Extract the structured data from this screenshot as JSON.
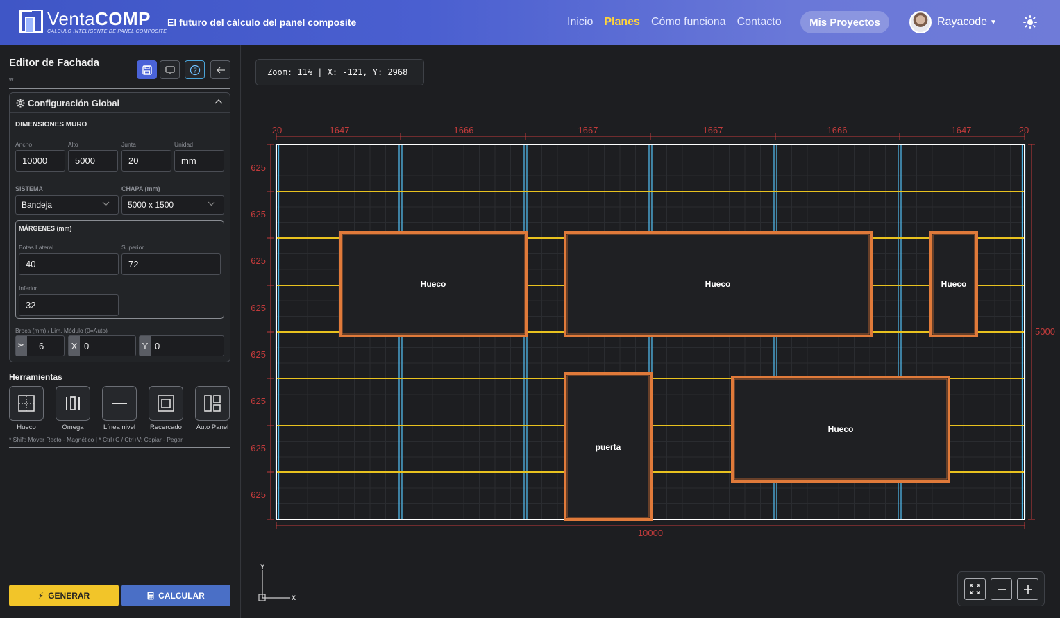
{
  "header": {
    "logo_word1": "Venta",
    "logo_word2": "COMP",
    "logo_subtitle": "CÁLCULO INTELIGENTE DE PANEL COMPOSITE",
    "tagline": "El futuro del cálculo del panel composite",
    "nav": [
      "Inicio",
      "Planes",
      "Cómo funciona",
      "Contacto"
    ],
    "nav_active": "Planes",
    "projects_button": "Mis Proyectos",
    "username": "Rayacode"
  },
  "sidebar": {
    "title": "Editor de Fachada",
    "subtitle": "w",
    "config_title": "Configuración Global",
    "wall_section": "DIMENSIONES MURO",
    "wall_fields": [
      {
        "label": "Ancho",
        "value": "10000"
      },
      {
        "label": "Alto",
        "value": "5000"
      },
      {
        "label": "Junta",
        "value": "20"
      },
      {
        "label": "Unidad",
        "value": "mm"
      }
    ],
    "system_label": "SISTEMA",
    "system_value": "Bandeja",
    "sheet_label": "CHAPA (mm)",
    "sheet_value": "5000 x 1500",
    "margins_title": "MÁRGENES (mm)",
    "margin_lateral_label": "Botas Lateral",
    "margin_lateral_value": "40",
    "margin_top_label": "Superior",
    "margin_top_value": "72",
    "margin_bottom_label": "Inferior",
    "margin_bottom_value": "32",
    "drill_label": "Broca (mm) / Lim. Módulo (0=Auto)",
    "drill_value": "6",
    "limit_x_tag": "X",
    "limit_x_value": "0",
    "limit_y_tag": "Y",
    "limit_y_value": "0",
    "tools_title": "Herramientas",
    "tools": [
      "Hueco",
      "Omega",
      "Línea nivel",
      "Recercado",
      "Auto Panel"
    ],
    "hint": "* Shift: Mover Recto - Magnético   |   * Ctrl+C / Ctrl+V: Copiar - Pegar",
    "generate_label": "GENERAR",
    "calculate_label": "CALCULAR"
  },
  "canvas": {
    "zoom_text": "Zoom: 11% | X: -121, Y: 2968",
    "axis_x": "X",
    "axis_y": "Y"
  },
  "drawing": {
    "wall_width": 10000,
    "wall_height": 5000,
    "top_dims": [
      "20",
      "1647",
      "1666",
      "1667",
      "1667",
      "1666",
      "1647",
      "20"
    ],
    "row_dims": [
      "625",
      "625",
      "625",
      "625",
      "625",
      "625",
      "625",
      "625"
    ],
    "total_width_label": "10000",
    "total_height_label": "5000",
    "openings": [
      {
        "label": "Hueco"
      },
      {
        "label": "Hueco"
      },
      {
        "label": "Hueco"
      },
      {
        "label": "puerta"
      },
      {
        "label": "Hueco"
      }
    ],
    "colors": {
      "wall_border": "#ffffff",
      "omega": "#4fb6e6",
      "level_line": "#e8c21f",
      "opening": "#e07a3a",
      "dimension": "#c23b3b"
    }
  }
}
